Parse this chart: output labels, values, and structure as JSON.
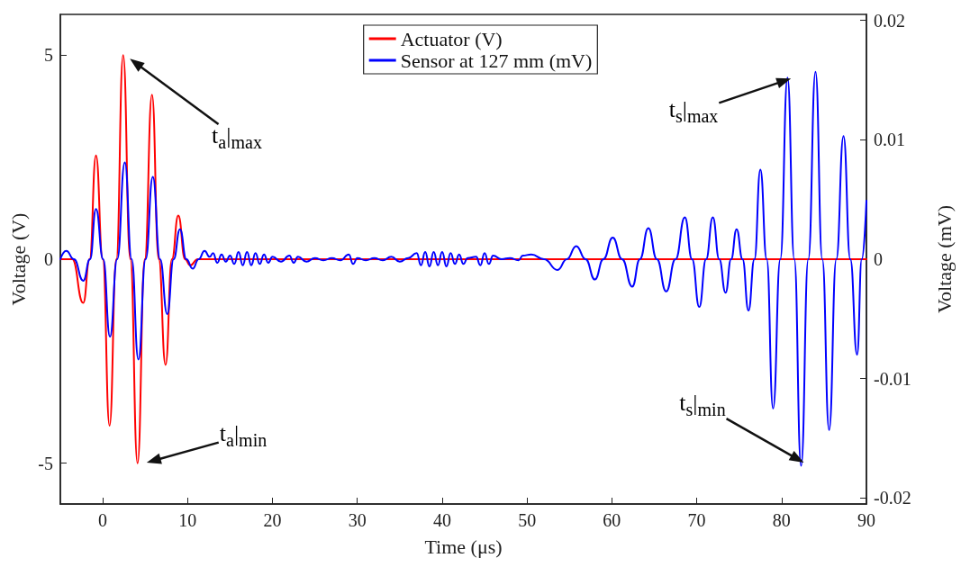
{
  "chart_data": {
    "type": "line",
    "xlabel": "Time (μs)",
    "ylabel": "Voltage (V)",
    "y2label": "Voltage (mV)",
    "xlim": [
      -5,
      90
    ],
    "xticks": [
      0,
      10,
      20,
      30,
      40,
      50,
      60,
      70,
      80,
      90
    ],
    "ylim": [
      -6,
      6
    ],
    "yticks": [
      -5,
      0,
      5
    ],
    "y2lim": [
      -0.0205,
      0.0205
    ],
    "y2ticks": [
      -0.02,
      -0.01,
      0,
      0.01,
      0.02
    ],
    "grid": false,
    "legend": "top",
    "marker": "none",
    "line_style": "solid",
    "series": [
      {
        "name": "Actuator (V)",
        "color": "#ff0000",
        "x": [
          -5,
          -3.6,
          -2.3,
          -1.55,
          -0.8,
          0,
          0.8,
          1.6,
          2.4,
          3.25,
          4.1,
          4.95,
          5.8,
          6.6,
          7.4,
          8.15,
          8.9,
          9.7,
          10.3,
          11.2,
          90
        ],
        "values": [
          0,
          0,
          -1.07,
          0,
          2.54,
          0,
          -4.08,
          0,
          5.0,
          0,
          -5.0,
          0,
          4.03,
          0,
          -2.59,
          0,
          1.07,
          0,
          -0.15,
          0,
          0
        ]
      },
      {
        "name": "Sensor at 127 mm (mV)",
        "color": "#0000ff",
        "axis": "y2",
        "x": [
          -5,
          -4.3,
          -3.4,
          -2.3,
          -1.5,
          -0.8,
          0.05,
          0.85,
          1.7,
          2.6,
          3.4,
          4.2,
          5.05,
          5.9,
          6.75,
          7.6,
          8.35,
          9.1,
          9.85,
          10.6,
          11.3,
          12,
          12.6,
          13,
          13.5,
          14,
          14.5,
          15,
          15.5,
          16,
          16.5,
          17,
          17.5,
          18,
          18.5,
          19,
          19.5,
          20,
          21,
          22,
          22.5,
          23,
          24,
          25,
          26,
          27,
          28,
          29,
          29.5,
          30,
          31,
          32,
          33,
          34,
          35,
          36,
          37,
          37.5,
          38,
          38.5,
          39,
          39.5,
          40,
          40.5,
          41,
          41.5,
          42,
          42.5,
          43,
          44,
          44.5,
          45,
          45.5,
          46,
          47,
          48,
          49,
          49.5,
          50.5,
          52,
          53.6,
          54.7,
          55.8,
          56.9,
          58,
          59,
          60.1,
          61.2,
          62.4,
          63.3,
          64.3,
          65.3,
          66.4,
          67.5,
          68.6,
          69.45,
          70.3,
          71.1,
          71.9,
          72.65,
          73.4,
          74.05,
          74.7,
          75.4,
          76.1,
          76.8,
          77.5,
          78.25,
          79,
          79.85,
          80.7,
          81.5,
          82.3,
          83.15,
          84,
          84.8,
          85.6,
          86.45,
          87.3,
          88.1,
          88.9,
          89.45,
          90
        ],
        "values": [
          0,
          0.0007,
          0,
          -0.0018,
          0,
          0.0042,
          0,
          -0.0065,
          0,
          0.0081,
          0,
          -0.0084,
          0,
          0.0069,
          0,
          -0.0046,
          0,
          0.0025,
          0,
          -0.0008,
          0,
          0.0007,
          0.0002,
          0.0005,
          -0.0003,
          0.0004,
          -0.0002,
          0.0003,
          -0.0004,
          0.0006,
          -0.0005,
          0.0006,
          -0.0005,
          0.0005,
          -0.0004,
          0.0004,
          -0.0003,
          0.0002,
          -0.0002,
          0.0003,
          -0.0003,
          0.0002,
          -0.0002,
          0.0001,
          -0.0001,
          0.0001,
          -0.0001,
          0.0004,
          -0.0004,
          0.0001,
          -0.0001,
          0.0001,
          -0.0001,
          0.0002,
          -0.0002,
          0.0001,
          0.0005,
          -0.0005,
          0.0006,
          -0.0006,
          0.0006,
          -0.0005,
          0.0006,
          -0.0006,
          0.0005,
          -0.0004,
          0.0004,
          -0.0004,
          0.0001,
          0.0002,
          -0.0005,
          0.0005,
          -0.0004,
          0.0003,
          0,
          0.0001,
          -0.0001,
          0.0003,
          0.0004,
          0,
          -0.0009,
          0,
          0.0011,
          0,
          -0.0017,
          0,
          0.0018,
          0,
          -0.0023,
          0,
          0.0026,
          0,
          -0.0027,
          0,
          0.0035,
          0,
          -0.004,
          0,
          0.0035,
          0,
          -0.0028,
          0,
          0.0025,
          0,
          -0.0043,
          0,
          0.0075,
          0,
          -0.0125,
          0,
          0.0152,
          0,
          -0.0173,
          0,
          0.0157,
          0,
          -0.0143,
          0,
          0.0103,
          0,
          -0.008,
          0,
          0.0049
        ]
      }
    ],
    "annotations": [
      "t$_{a}$|$_{max}$",
      "t$_{a}$|$_{min}$",
      "t$_{s}$|$_{max}$",
      "t$_{s}$|$_{min}$"
    ]
  }
}
